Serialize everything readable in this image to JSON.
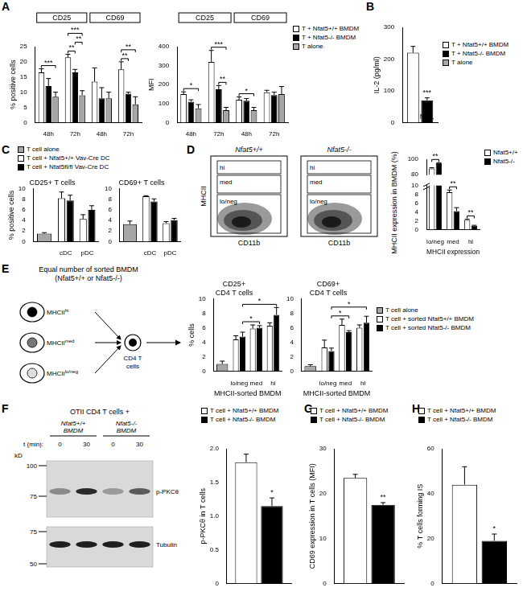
{
  "chart_data": [
    {
      "panel": "A",
      "type": "bar",
      "ylabel": "% positive cells",
      "categories": [
        "48h",
        "72h",
        "48h",
        "72h"
      ],
      "groups": [
        {
          "label": "CD25",
          "categories": [
            0,
            1
          ]
        },
        {
          "label": "CD69",
          "categories": [
            2,
            3
          ]
        }
      ],
      "series": [
        {
          "color": "#ffffff",
          "values": [
            16.5,
            21.5,
            13.5,
            17.5
          ],
          "errors": [
            1.2,
            1.0,
            4.5,
            2.5
          ]
        },
        {
          "color": "#000000",
          "values": [
            12,
            16.5,
            8,
            9.5
          ],
          "errors": [
            2.5,
            1.0,
            3.5,
            0.5
          ]
        },
        {
          "color": "#a6a6a6",
          "values": [
            8.5,
            9,
            8,
            6
          ],
          "errors": [
            1.5,
            1.5,
            2,
            2.5
          ]
        }
      ],
      "ylim": [
        0,
        25
      ],
      "yticks": [
        0,
        5,
        10,
        15,
        20,
        25
      ],
      "grid": false,
      "annotations": [
        {
          "text": "***",
          "from": [
            0,
            0
          ],
          "to": [
            0,
            2
          ]
        },
        {
          "text": "**",
          "from": [
            1,
            0
          ],
          "to": [
            1,
            1
          ]
        },
        {
          "text": "**",
          "from": [
            1,
            1
          ],
          "to": [
            1,
            2
          ]
        },
        {
          "text": "***",
          "from": [
            1,
            0
          ],
          "to": [
            1,
            2
          ]
        },
        {
          "text": "**",
          "from": [
            3,
            0
          ],
          "to": [
            3,
            1
          ]
        },
        {
          "text": "**",
          "from": [
            3,
            0
          ],
          "to": [
            3,
            2
          ]
        }
      ]
    },
    {
      "type": "bar",
      "ylabel": "MFI",
      "categories": [
        "48h",
        "72h",
        "48h",
        "72h"
      ],
      "groups": [
        {
          "label": "CD25",
          "categories": [
            0,
            1
          ]
        },
        {
          "label": "CD69",
          "categories": [
            2,
            3
          ]
        }
      ],
      "series": [
        {
          "name": "T + Nfat5+/+ BMDM",
          "color": "#ffffff",
          "values": [
            150,
            320,
            120,
            160
          ],
          "errors": [
            12,
            60,
            15,
            10
          ]
        },
        {
          "name": "T + Nfat5-/- BMDM",
          "color": "#000000",
          "values": [
            110,
            175,
            115,
            145
          ],
          "errors": [
            10,
            20,
            12,
            15
          ]
        },
        {
          "name": "T alone",
          "color": "#a6a6a6",
          "values": [
            75,
            65,
            65,
            150
          ],
          "errors": [
            20,
            15,
            15,
            40
          ]
        }
      ],
      "ylim": [
        0,
        400
      ],
      "yticks": [
        0,
        100,
        200,
        300,
        400
      ],
      "grid": false,
      "legend": "right",
      "annotations": [
        {
          "text": "*",
          "from": [
            0,
            0
          ],
          "to": [
            0,
            2
          ]
        },
        {
          "text": "**",
          "from": [
            1,
            1
          ],
          "to": [
            1,
            2
          ]
        },
        {
          "text": "***",
          "from": [
            1,
            0
          ],
          "to": [
            1,
            2
          ]
        },
        {
          "text": "*",
          "from": [
            2,
            0
          ],
          "to": [
            2,
            2
          ]
        }
      ]
    },
    {
      "panel": "B",
      "type": "bar",
      "ylabel": "IL-2 (pg/ml)",
      "categories": [
        null
      ],
      "series": [
        {
          "name": "T + Nfat5+/+ BMDM",
          "color": "#ffffff",
          "values": [
            220
          ],
          "errors": [
            20
          ]
        },
        {
          "name": "T + Nfat5-/- BMDM",
          "color": "#000000",
          "values": [
            70
          ],
          "errors": [
            8
          ]
        },
        {
          "name": "T alone",
          "color": "#a6a6a6",
          "values": [
            null
          ],
          "errors": [
            null
          ]
        }
      ],
      "ylim": [
        0,
        300
      ],
      "yticks": [
        0,
        100,
        200,
        300
      ],
      "grid": false,
      "legend": "right",
      "annotations": [
        {
          "text": "***",
          "at": [
            0,
            1
          ]
        },
        {
          "text": "N.D.",
          "at": [
            0,
            2
          ]
        }
      ]
    },
    {
      "panel": "C",
      "type": "bar",
      "title": "CD25+ T cells",
      "ylabel": "% positive cells",
      "categories": [
        null,
        "cDC",
        "pDC"
      ],
      "series": [
        {
          "name": "T cell alone",
          "color": "#a6a6a6",
          "values": [
            1.5,
            null,
            null
          ],
          "errors": [
            0.2,
            null,
            null
          ]
        },
        {
          "name": "T cell + Nfat5+/+ Vav-Cre DC",
          "color": "#ffffff",
          "values": [
            null,
            8.2,
            4.3
          ],
          "errors": [
            null,
            1.2,
            0.8
          ]
        },
        {
          "name": "T cell + Nfat5fl/fl Vav-Cre DC",
          "color": "#000000",
          "values": [
            null,
            7.8,
            6.0
          ],
          "errors": [
            null,
            1.0,
            0.8
          ]
        }
      ],
      "ylim": [
        0,
        10
      ],
      "yticks": [
        0,
        2,
        4,
        6,
        8,
        10
      ],
      "grid": false,
      "legend": "top"
    },
    {
      "type": "bar",
      "title": "CD69+ T cells",
      "categories": [
        null,
        "cDC",
        "pDC"
      ],
      "series": [
        {
          "color": "#a6a6a6",
          "values": [
            3.3,
            null,
            null
          ],
          "errors": [
            0.6,
            null,
            null
          ]
        },
        {
          "color": "#ffffff",
          "values": [
            null,
            8.6,
            3.5
          ],
          "errors": [
            null,
            0.1,
            0.3
          ]
        },
        {
          "color": "#000000",
          "values": [
            null,
            7.6,
            4.1
          ],
          "errors": [
            null,
            0.5,
            0.3
          ]
        }
      ],
      "ylim": [
        0,
        10
      ],
      "yticks": [
        0,
        2,
        4,
        6,
        8,
        10
      ],
      "grid": false
    },
    {
      "type": "bar",
      "ylabel": "MHCII expression in BMDM (%)",
      "xlabel": "MHCII expression",
      "categories": [
        "lo/neg",
        "med",
        "hi"
      ],
      "series": [
        {
          "name": "Nfat5+/+",
          "color": "#ffffff",
          "values": [
            88,
            8.5,
            2.2
          ],
          "errors": [
            1,
            0.5,
            0.2
          ]
        },
        {
          "name": "Nfat5-/-",
          "color": "#000000",
          "values": [
            95,
            4.2,
            0.9
          ],
          "errors": [
            0.5,
            0.8,
            0.1
          ]
        }
      ],
      "ylim": [
        0,
        100
      ],
      "yticks": [
        0,
        2,
        4,
        6,
        8,
        10,
        80,
        100
      ],
      "axis_break": [
        10,
        80
      ],
      "grid": false,
      "legend": "right",
      "annotations": [
        {
          "text": "**",
          "from": [
            0,
            0
          ],
          "to": [
            0,
            1
          ]
        },
        {
          "text": "**",
          "from": [
            1,
            0
          ],
          "to": [
            1,
            1
          ]
        },
        {
          "text": "**",
          "from": [
            2,
            0
          ],
          "to": [
            2,
            1
          ]
        }
      ]
    },
    {
      "type": "bar",
      "title": "CD25+\nCD4 T cells",
      "ylabel": "% cells",
      "xlabel": "MHCII-sorted BMDM",
      "categories": [
        null,
        "lo/neg",
        "med",
        "hi"
      ],
      "series": [
        {
          "name": "T cell alone",
          "color": "#a6a6a6",
          "values": [
            1.0,
            null,
            null,
            null
          ],
          "errors": [
            0.4,
            null,
            null,
            null
          ]
        },
        {
          "name": "T cell + sorted Nfat5+/+ BMDM",
          "color": "#ffffff",
          "values": [
            null,
            4.4,
            5.9,
            6.3
          ],
          "errors": [
            null,
            0.5,
            0.5,
            0.4
          ]
        },
        {
          "name": "T cell + sorted Nfat5-/- BMDM",
          "color": "#000000",
          "values": [
            null,
            4.8,
            6.0,
            7.8
          ],
          "errors": [
            null,
            0.6,
            0.3,
            1.0
          ]
        }
      ],
      "ylim": [
        0,
        10
      ],
      "yticks": [
        0,
        2,
        4,
        6,
        8,
        10
      ],
      "grid": false,
      "legend": "right",
      "annotations": [
        {
          "text": "*",
          "from": [
            1,
            0
          ],
          "to": [
            2,
            0
          ]
        },
        {
          "text": "*",
          "from": [
            1,
            0
          ],
          "to": [
            3,
            0
          ]
        }
      ]
    },
    {
      "type": "bar",
      "title": "CD69+\nCD4 T cells",
      "xlabel": "MHCII-sorted BMDM",
      "categories": [
        null,
        "lo/neg",
        "med",
        "hi"
      ],
      "series": [
        {
          "color": "#a6a6a6",
          "values": [
            0.7,
            null,
            null,
            null
          ],
          "errors": [
            0.2,
            null,
            null,
            null
          ]
        },
        {
          "color": "#ffffff",
          "values": [
            null,
            3.3,
            6.4,
            6.0
          ],
          "errors": [
            null,
            1.0,
            0.8,
            0.4
          ]
        },
        {
          "color": "#000000",
          "values": [
            null,
            2.8,
            5.4,
            6.7
          ],
          "errors": [
            null,
            0.4,
            0.2,
            0.9
          ]
        }
      ],
      "ylim": [
        0,
        10
      ],
      "yticks": [
        0,
        2,
        4,
        6,
        8,
        10
      ],
      "grid": false,
      "annotations": [
        {
          "text": "*",
          "from": [
            1,
            0
          ],
          "to": [
            2,
            0
          ]
        },
        {
          "text": "*",
          "from": [
            1,
            0
          ],
          "to": [
            3,
            0
          ]
        }
      ]
    },
    {
      "type": "bar",
      "ylabel": "p-PKCθ in T cells",
      "categories": [
        null
      ],
      "series": [
        {
          "name": "T cell + Nfat5+/+ BMDM",
          "color": "#ffffff",
          "values": [
            1.8
          ],
          "errors": [
            0.12
          ]
        },
        {
          "name": "T cell + Nfat5-/- BMDM",
          "color": "#000000",
          "values": [
            1.15
          ],
          "errors": [
            0.12
          ]
        }
      ],
      "ylim": [
        0,
        2
      ],
      "yticks": [
        0,
        0.5,
        {
          "value": 1,
          "label": "1.0"
        },
        1.5,
        {
          "value": 2,
          "label": "2.0"
        }
      ],
      "grid": false,
      "legend": "top",
      "annotations": [
        {
          "text": "*",
          "at": [
            0,
            1
          ]
        }
      ]
    },
    {
      "panel": "G",
      "type": "bar",
      "ylabel": "CD69 expression in T cells (MFI)",
      "categories": [
        null
      ],
      "series": [
        {
          "name": "T cell + Nfat5+/+ BMDM",
          "color": "#ffffff",
          "values": [
            23.5
          ],
          "errors": [
            0.8
          ]
        },
        {
          "name": "T cell + Nfat5-/- BMDM",
          "color": "#000000",
          "values": [
            17.5
          ],
          "errors": [
            0.5
          ]
        }
      ],
      "ylim": [
        0,
        30
      ],
      "yticks": [
        0,
        10,
        20,
        30
      ],
      "grid": false,
      "legend": "top",
      "annotations": [
        {
          "text": "**",
          "at": [
            0,
            1
          ]
        }
      ]
    },
    {
      "panel": "H",
      "type": "bar",
      "ylabel": "% T cells forming IS",
      "categories": [
        null
      ],
      "series": [
        {
          "name": "T cell + Nfat5+/+ BMDM",
          "color": "#ffffff",
          "values": [
            44
          ],
          "errors": [
            8
          ]
        },
        {
          "name": "T cell + Nfat5-/- BMDM",
          "color": "#000000",
          "values": [
            19
          ],
          "errors": [
            3
          ]
        }
      ],
      "ylim": [
        0,
        60
      ],
      "yticks": [
        0,
        20,
        40,
        60
      ],
      "grid": false,
      "legend": "top",
      "annotations": [
        {
          "text": "*",
          "at": [
            0,
            1
          ]
        }
      ]
    }
  ],
  "diagrams": {
    "flow": {
      "panel": "D",
      "x_label": "CD11b",
      "y_label": "MHCII",
      "plots": [
        {
          "title": "Nfat5+/+",
          "gates": [
            "hi",
            "med",
            "lo/neg"
          ]
        },
        {
          "title": "Nfat5-/-",
          "gates": [
            "hi",
            "med",
            "lo/neg"
          ]
        }
      ]
    },
    "scheme": {
      "panel": "E",
      "heading": "Equal number of sorted BMDM\n(Nfat5+/+ or Nfat5-/-)",
      "cells": [
        {
          "label": "MHCII",
          "sup": "hi"
        },
        {
          "label": "MHCII",
          "sup": "med"
        },
        {
          "label": "MHCII",
          "sup": "lo/neg"
        }
      ],
      "target": "CD4 T\ncells"
    },
    "blot": {
      "panel": "F",
      "heading": "OTII CD4 T cells +",
      "lanes": [
        "Nfat5+/+\nBMDM",
        "Nfat5-/-\nBMDM"
      ],
      "time_label": "t (min):",
      "times": [
        0,
        30,
        0,
        30
      ],
      "unit": "kD",
      "markers_upper": [
        100,
        75
      ],
      "markers_lower": [
        75,
        50
      ],
      "bands": [
        "p-PKCθ",
        "Tubulin"
      ]
    }
  }
}
